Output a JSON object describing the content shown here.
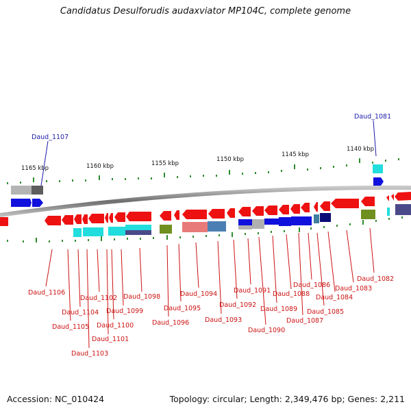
{
  "title": "Candidatus Desulforudis audaxviator MP104C, complete genome",
  "accession": "Accession: NC_010424",
  "topology": "Topology: circular; Length: 2,349,476 bp; Genes: 2,211",
  "colors": {
    "label_above": "#1a1aa8",
    "label_below": "#cc1111",
    "backbone": "#8a8a8a",
    "tick": "#2e8b2e",
    "gene_red": "#ee1111",
    "gene_blue": "#1111dd",
    "gene_cyan": "#22dddd",
    "gene_olive": "#6f8f1f"
  },
  "scale_labels": [
    {
      "text": "1165 kbp"
    },
    {
      "text": "1160 kbp"
    },
    {
      "text": "1155 kbp"
    },
    {
      "text": "1150 kbp"
    },
    {
      "text": "1145 kbp"
    },
    {
      "text": "1140 kbp"
    }
  ],
  "genes_above": [
    {
      "text": "Daud_1107"
    },
    {
      "text": "Daud_1081"
    }
  ],
  "genes_below": [
    {
      "text": "Daud_1106"
    },
    {
      "text": "Daud_1105"
    },
    {
      "text": "Daud_1104"
    },
    {
      "text": "Daud_1103"
    },
    {
      "text": "Daud_1102"
    },
    {
      "text": "Daud_1101"
    },
    {
      "text": "Daud_1100"
    },
    {
      "text": "Daud_1099"
    },
    {
      "text": "Daud_1098"
    },
    {
      "text": "Daud_1096"
    },
    {
      "text": "Daud_1095"
    },
    {
      "text": "Daud_1094"
    },
    {
      "text": "Daud_1093"
    },
    {
      "text": "Daud_1092"
    },
    {
      "text": "Daud_1091"
    },
    {
      "text": "Daud_1090"
    },
    {
      "text": "Daud_1089"
    },
    {
      "text": "Daud_1088"
    },
    {
      "text": "Daud_1087"
    },
    {
      "text": "Daud_1086"
    },
    {
      "text": "Daud_1085"
    },
    {
      "text": "Daud_1084"
    },
    {
      "text": "Daud_1083"
    },
    {
      "text": "Daud_1082"
    }
  ]
}
